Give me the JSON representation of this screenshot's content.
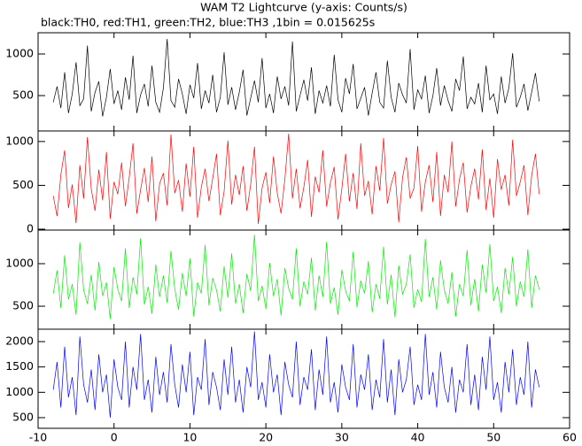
{
  "chart_data": {
    "type": "line",
    "title": "WAM T2 Lightcurve (y-axis: Counts/s)",
    "subtitle": "black:TH0, red:TH1, green:TH2, blue:TH3 ,1bin = 0.015625s",
    "xlim": [
      -10,
      60
    ],
    "xticks": [
      -10,
      0,
      10,
      20,
      30,
      40,
      50,
      60
    ],
    "x": [
      -8,
      -7.5,
      -7,
      -6.5,
      -6,
      -5.5,
      -5,
      -4.5,
      -4,
      -3.5,
      -3,
      -2.5,
      -2,
      -1.5,
      -1,
      -0.5,
      0,
      0.5,
      1,
      1.5,
      2,
      2.5,
      3,
      3.5,
      4,
      4.5,
      5,
      5.5,
      6,
      6.5,
      7,
      7.5,
      8,
      8.5,
      9,
      9.5,
      10,
      10.5,
      11,
      11.5,
      12,
      12.5,
      13,
      13.5,
      14,
      14.5,
      15,
      15.5,
      16,
      16.5,
      17,
      17.5,
      18,
      18.5,
      19,
      19.5,
      20,
      20.5,
      21,
      21.5,
      22,
      22.5,
      23,
      23.5,
      24,
      24.5,
      25,
      25.5,
      26,
      26.5,
      27,
      27.5,
      28,
      28.5,
      29,
      29.5,
      30,
      30.5,
      31,
      31.5,
      32,
      32.5,
      33,
      33.5,
      34,
      34.5,
      35,
      35.5,
      36,
      36.5,
      37,
      37.5,
      38,
      38.5,
      39,
      39.5,
      40,
      40.5,
      41,
      41.5,
      42,
      42.5,
      43,
      43.5,
      44,
      44.5,
      45,
      45.5,
      46,
      46.5,
      47,
      47.5,
      48,
      48.5,
      49,
      49.5,
      50,
      50.5,
      51,
      51.5,
      52,
      52.5,
      53,
      53.5,
      54,
      54.5,
      55,
      55.5,
      56
    ],
    "series": [
      {
        "color": "#000000",
        "ylim": [
          75,
          1255
        ],
        "yticks": [
          500,
          1000
        ],
        "values": [
          420,
          610,
          350,
          780,
          290,
          520,
          900,
          380,
          460,
          1100,
          310,
          540,
          670,
          250,
          480,
          820,
          400,
          560,
          330,
          720,
          450,
          980,
          290,
          510,
          640,
          370,
          860,
          420,
          300,
          590,
          1180,
          440,
          360,
          700,
          520,
          280,
          630,
          470,
          890,
          340,
          560,
          410,
          750,
          300,
          480,
          1020,
          390,
          600,
          330,
          540,
          810,
          260,
          470,
          680,
          420,
          950,
          350,
          520,
          290,
          730,
          460,
          610,
          380,
          1150,
          310,
          500,
          690,
          440,
          840,
          280,
          560,
          410,
          620,
          370,
          990,
          450,
          300,
          710,
          520,
          880,
          340,
          470,
          600,
          260,
          530,
          780,
          420,
          350,
          920,
          480,
          300,
          650,
          510,
          410,
          1060,
          330,
          570,
          460,
          740,
          290,
          500,
          830,
          380,
          620,
          440,
          310,
          700,
          560,
          970,
          340,
          480,
          400,
          650,
          300,
          860,
          450,
          520,
          280,
          730,
          410,
          590,
          1010,
          360,
          480,
          640,
          320,
          540,
          770,
          430
        ]
      },
      {
        "color": "#ff0000",
        "ylim": [
          -10,
          1120
        ],
        "yticks": [
          0,
          500,
          1000
        ],
        "values": [
          380,
          150,
          620,
          900,
          240,
          510,
          70,
          730,
          350,
          1050,
          460,
          210,
          680,
          330,
          880,
          120,
          540,
          400,
          760,
          260,
          590,
          980,
          180,
          450,
          700,
          310,
          830,
          90,
          520,
          640,
          270,
          1080,
          410,
          560,
          200,
          750,
          370,
          940,
          130,
          480,
          690,
          320,
          580,
          860,
          160,
          430,
          1010,
          280,
          620,
          390,
          720,
          210,
          510,
          940,
          60,
          470,
          650,
          300,
          830,
          410,
          180,
          570,
          1090,
          350,
          690,
          240,
          480,
          790,
          140,
          600,
          420,
          900,
          260,
          530,
          710,
          110,
          460,
          860,
          320,
          640,
          230,
          980,
          380,
          550,
          170,
          720,
          440,
          1040,
          290,
          510,
          660,
          80,
          590,
          820,
          350,
          470,
          950,
          200,
          540,
          730,
          310,
          880,
          150,
          620,
          420,
          1000,
          260,
          570,
          760,
          190,
          490,
          690,
          340,
          910,
          220,
          580,
          130,
          800,
          450,
          620,
          270,
          1020,
          380,
          540,
          730,
          160,
          610,
          860,
          400
        ]
      },
      {
        "color": "#00ee00",
        "ylim": [
          230,
          1395
        ],
        "yticks": [
          500,
          1000
        ],
        "values": [
          650,
          920,
          480,
          1100,
          580,
          760,
          400,
          1250,
          690,
          530,
          870,
          450,
          1020,
          620,
          780,
          350,
          960,
          700,
          560,
          1180,
          480,
          840,
          640,
          1300,
          520,
          730,
          410,
          990,
          610,
          860,
          540,
          1150,
          700,
          460,
          890,
          620,
          1060,
          380,
          780,
          650,
          1220,
          510,
          830,
          690,
          440,
          970,
          600,
          1120,
          530,
          760,
          420,
          880,
          680,
          1340,
          560,
          740,
          470,
          1010,
          620,
          820,
          390,
          950,
          710,
          580,
          1180,
          500,
          790,
          640,
          1070,
          450,
          860,
          610,
          1260,
          530,
          720,
          400,
          930,
          680,
          560,
          1140,
          490,
          800,
          650,
          1030,
          430,
          760,
          590,
          1200,
          520,
          870,
          370,
          980,
          640,
          760,
          1110,
          480,
          700,
          550,
          1290,
          610,
          840,
          460,
          1040,
          690,
          530,
          900,
          380,
          760,
          620,
          1160,
          510,
          820,
          440,
          990,
          660,
          1230,
          560,
          730,
          420,
          950,
          640,
          1080,
          500,
          790,
          610,
          1170,
          480,
          860,
          700
        ]
      },
      {
        "color": "#0000ff",
        "ylim": [
          290,
          2245
        ],
        "yticks": [
          500,
          1000,
          1500,
          2000
        ],
        "values": [
          1050,
          1600,
          700,
          1900,
          900,
          1300,
          550,
          2100,
          1150,
          800,
          1450,
          650,
          1750,
          1000,
          1350,
          500,
          1650,
          1100,
          850,
          2000,
          700,
          1500,
          1050,
          2150,
          850,
          1250,
          600,
          1700,
          950,
          1400,
          800,
          1950,
          1150,
          700,
          1550,
          1000,
          1800,
          550,
          1300,
          1050,
          2050,
          750,
          1400,
          1100,
          650,
          1650,
          950,
          1900,
          800,
          1250,
          600,
          1500,
          1100,
          2200,
          850,
          1200,
          700,
          1750,
          1000,
          1350,
          550,
          1600,
          1150,
          900,
          2000,
          750,
          1300,
          1050,
          1850,
          650,
          1450,
          950,
          2100,
          800,
          1200,
          600,
          1550,
          1100,
          850,
          1950,
          700,
          1350,
          1050,
          1750,
          650,
          1250,
          900,
          2050,
          800,
          1450,
          550,
          1650,
          1000,
          1250,
          1900,
          750,
          1150,
          850,
          2150,
          950,
          1400,
          700,
          1800,
          1100,
          800,
          1500,
          600,
          1250,
          1000,
          1950,
          750,
          1350,
          650,
          1700,
          1050,
          2100,
          850,
          1200,
          600,
          1600,
          1000,
          1850,
          750,
          1300,
          950,
          2000,
          700,
          1450,
          1100
        ]
      }
    ]
  }
}
